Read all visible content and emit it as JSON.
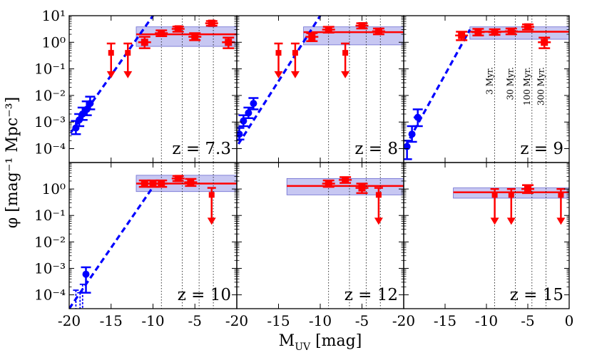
{
  "figure": {
    "xlabel_main": "M",
    "xlabel_sub": "UV",
    "xlabel_unit": " [mag]",
    "ylabel": "φ [mag⁻¹ Mpc⁻³]",
    "age_labels": [
      "3 Myr.",
      "30 Myr.",
      "100 Myr.",
      "300 Myr."
    ]
  },
  "colors": {
    "model": "#ff0000",
    "obs": "#0000ff",
    "band": "#b4b4ee",
    "band_edge": "#6c6cd0"
  },
  "chart_data": [
    {
      "type": "scatter",
      "label": "z = 7.3",
      "xlim": [
        -20,
        0
      ],
      "ylim": [
        3e-05,
        10
      ],
      "yscale": "log",
      "xticks": [
        "-20",
        "-15",
        "-10",
        "-5",
        "0"
      ],
      "yticks": [
        "10⁻⁴",
        "10⁻³",
        "10⁻²",
        "10⁻¹",
        "10⁰",
        "10¹"
      ],
      "age_lines": [
        -9,
        -6.5,
        -4.5,
        -2.8
      ],
      "observed": [
        {
          "x": -19.2,
          "y": 0.0006,
          "xerr": 0.4,
          "ylo": 0.00035,
          "yhi": 0.0011
        },
        {
          "x": -18.8,
          "y": 0.0012,
          "xerr": 0.4,
          "ylo": 0.0007,
          "yhi": 0.002
        },
        {
          "x": -18.4,
          "y": 0.002,
          "xerr": 0.4,
          "ylo": 0.0012,
          "yhi": 0.0035
        },
        {
          "x": -17.9,
          "y": 0.003,
          "xerr": 0.4,
          "ylo": 0.0018,
          "yhi": 0.006
        },
        {
          "x": -17.5,
          "y": 0.005,
          "xerr": 0.4,
          "ylo": 0.003,
          "yhi": 0.009
        }
      ],
      "obs_fit": [
        [
          -19.8,
          0.0004
        ],
        [
          -10.0,
          10
        ]
      ],
      "model_points": [
        {
          "x": -11.0,
          "y": 1.0,
          "ylo": 0.6,
          "yhi": 1.6
        },
        {
          "x": -9.0,
          "y": 2.2,
          "ylo": 1.7,
          "yhi": 2.8
        },
        {
          "x": -7.0,
          "y": 3.2,
          "ylo": 2.5,
          "yhi": 3.9
        },
        {
          "x": -5.0,
          "y": 1.6,
          "ylo": 1.2,
          "yhi": 2.2
        },
        {
          "x": -3.0,
          "y": 5.2,
          "ylo": 4.2,
          "yhi": 6.3
        },
        {
          "x": -1.0,
          "y": 1.0,
          "ylo": 0.6,
          "yhi": 1.5
        }
      ],
      "upper_limits": [
        {
          "x": -15.0,
          "y": 0.4,
          "yhi": 0.9,
          "ylo": 0.05
        },
        {
          "x": -13.0,
          "y": 0.4,
          "yhi": 0.9,
          "ylo": 0.05
        }
      ],
      "band": {
        "x0": -12,
        "x1": 0,
        "ylo": 0.7,
        "yhi": 3.8,
        "mean": 2.0
      }
    },
    {
      "type": "scatter",
      "label": "z = 8",
      "xlim": [
        -20,
        0
      ],
      "ylim": [
        3e-05,
        10
      ],
      "yscale": "log",
      "age_lines": [
        -9,
        -6.5,
        -4.5,
        -2.8
      ],
      "observed": [
        {
          "x": -19.7,
          "y": 0.00035,
          "xerr": 0.3,
          "ylo": 0.00022,
          "yhi": 0.0006
        },
        {
          "x": -19.2,
          "y": 0.0011,
          "xerr": 0.4,
          "ylo": 0.0007,
          "yhi": 0.0018
        },
        {
          "x": -18.6,
          "y": 0.0022,
          "xerr": 0.4,
          "ylo": 0.0014,
          "yhi": 0.0035
        },
        {
          "x": -18.0,
          "y": 0.005,
          "xerr": 0.3,
          "ylo": 0.003,
          "yhi": 0.008
        }
      ],
      "obs_fit": [
        [
          -19.8,
          0.00015
        ],
        [
          -10.0,
          10
        ]
      ],
      "model_points": [
        {
          "x": -11.0,
          "y": 1.6,
          "ylo": 1.1,
          "yhi": 2.2
        },
        {
          "x": -9.0,
          "y": 3.0,
          "ylo": 2.3,
          "yhi": 3.8
        },
        {
          "x": -5.0,
          "y": 4.2,
          "ylo": 3.3,
          "yhi": 5.2
        },
        {
          "x": -3.0,
          "y": 2.6,
          "ylo": 2.0,
          "yhi": 3.3
        }
      ],
      "upper_limits": [
        {
          "x": -15.0,
          "y": 0.4,
          "yhi": 0.9,
          "ylo": 0.05
        },
        {
          "x": -13.0,
          "y": 0.4,
          "yhi": 0.9,
          "ylo": 0.05
        },
        {
          "x": -7.0,
          "y": 0.4,
          "yhi": 0.9,
          "ylo": 0.05
        }
      ],
      "band": {
        "x0": -12,
        "x1": 0,
        "ylo": 0.8,
        "yhi": 3.8,
        "mean": 2.4
      }
    },
    {
      "type": "scatter",
      "label": "z = 9",
      "xlim": [
        -20,
        0
      ],
      "ylim": [
        3e-05,
        10
      ],
      "yscale": "log",
      "age_lines": [
        -9,
        -6.5,
        -4.5,
        -2.8
      ],
      "observed": [
        {
          "x": -19.6,
          "y": 0.00012,
          "xerr": 0.3,
          "ylo": 4e-05,
          "yhi": 0.0002
        },
        {
          "x": -19.0,
          "y": 0.00035,
          "xerr": 0.3,
          "ylo": 0.00018,
          "yhi": 0.0007
        },
        {
          "x": -18.3,
          "y": 0.0015,
          "xerr": 0.5,
          "ylo": 0.0007,
          "yhi": 0.003
        }
      ],
      "obs_fit": [
        [
          -19.8,
          0.00012
        ],
        [
          -12.0,
          3.0
        ]
      ],
      "model_points": [
        {
          "x": -13.0,
          "y": 1.8,
          "ylo": 1.2,
          "yhi": 2.5
        },
        {
          "x": -11.0,
          "y": 2.4,
          "ylo": 1.8,
          "yhi": 3.2
        },
        {
          "x": -9.0,
          "y": 2.4,
          "ylo": 1.9,
          "yhi": 3.1
        },
        {
          "x": -7.0,
          "y": 2.6,
          "ylo": 2.0,
          "yhi": 3.3
        },
        {
          "x": -5.0,
          "y": 3.8,
          "ylo": 3.0,
          "yhi": 4.7
        },
        {
          "x": -3.0,
          "y": 1.0,
          "ylo": 0.6,
          "yhi": 1.5
        }
      ],
      "upper_limits": [],
      "band": {
        "x0": -12,
        "x1": 0,
        "ylo": 1.3,
        "yhi": 3.8,
        "mean": 2.5
      }
    },
    {
      "type": "scatter",
      "label": "z = 10",
      "xlim": [
        -20,
        0
      ],
      "ylim": [
        3e-05,
        10
      ],
      "yscale": "log",
      "yticks": [
        "10⁻⁴",
        "10⁻³",
        "10⁻²",
        "10⁻¹",
        "10⁰"
      ],
      "age_lines": [
        -9,
        -6.5,
        -4.5,
        -2.8
      ],
      "observed": [
        {
          "x": -18.0,
          "y": 0.0006,
          "xerr": 0.3,
          "ylo": 0.00012,
          "yhi": 0.0011
        }
      ],
      "obs_upper": [
        {
          "x": -19.2,
          "yhi": 0.00015
        },
        {
          "x": -18.7,
          "yhi": 0.00012
        },
        {
          "x": -18.4,
          "yhi": 0.00025
        }
      ],
      "obs_fit": [
        [
          -20.0,
          3e-05
        ],
        [
          -10.0,
          1.2
        ]
      ],
      "model_points": [
        {
          "x": -11.0,
          "y": 1.6,
          "ylo": 1.2,
          "yhi": 2.1
        },
        {
          "x": -10.0,
          "y": 1.6,
          "ylo": 1.2,
          "yhi": 2.1
        },
        {
          "x": -9.0,
          "y": 1.6,
          "ylo": 1.2,
          "yhi": 2.1
        },
        {
          "x": -7.0,
          "y": 2.5,
          "ylo": 2.0,
          "yhi": 3.1
        },
        {
          "x": -5.5,
          "y": 1.8,
          "ylo": 1.3,
          "yhi": 2.4
        }
      ],
      "upper_limits": [
        {
          "x": -3.0,
          "y": 0.6,
          "yhi": 1.1,
          "ylo": 0.05
        }
      ],
      "band": {
        "x0": -12,
        "x1": 0,
        "ylo": 0.8,
        "yhi": 3.3,
        "mean": 1.6
      }
    },
    {
      "type": "scatter",
      "label": "z = 12",
      "xlim": [
        -20,
        0
      ],
      "ylim": [
        3e-05,
        10
      ],
      "yscale": "log",
      "age_lines": [
        -9,
        -6.5,
        -4.5,
        -2.8
      ],
      "observed": [],
      "obs_fit": [],
      "model_points": [
        {
          "x": -9.0,
          "y": 1.6,
          "ylo": 1.2,
          "yhi": 2.1
        },
        {
          "x": -7.0,
          "y": 2.2,
          "ylo": 1.7,
          "yhi": 2.8
        },
        {
          "x": -5.0,
          "y": 1.1,
          "ylo": 0.7,
          "yhi": 1.6
        }
      ],
      "upper_limits": [
        {
          "x": -3.0,
          "y": 0.6,
          "yhi": 1.1,
          "ylo": 0.05
        }
      ],
      "band": {
        "x0": -14,
        "x1": 0,
        "ylo": 0.6,
        "yhi": 2.5,
        "mean": 1.3
      }
    },
    {
      "type": "scatter",
      "label": "z = 15",
      "xlim": [
        -20,
        0
      ],
      "ylim": [
        3e-05,
        10
      ],
      "yscale": "log",
      "xticks": [
        "-20",
        "-15",
        "-10",
        "-5",
        "0"
      ],
      "age_lines": [
        -9,
        -6.5,
        -4.5,
        -2.8
      ],
      "observed": [],
      "obs_fit": [],
      "model_points": [
        {
          "x": -5.0,
          "y": 1.0,
          "ylo": 0.7,
          "yhi": 1.4
        }
      ],
      "upper_limits": [
        {
          "x": -9.0,
          "y": 0.6,
          "yhi": 1.0,
          "ylo": 0.05
        },
        {
          "x": -7.0,
          "y": 0.6,
          "yhi": 1.0,
          "ylo": 0.05
        },
        {
          "x": -1.0,
          "y": 0.6,
          "yhi": 1.0,
          "ylo": 0.05
        }
      ],
      "band": {
        "x0": -14,
        "x1": 0,
        "ylo": 0.45,
        "yhi": 1.1,
        "mean": 0.75
      }
    }
  ]
}
